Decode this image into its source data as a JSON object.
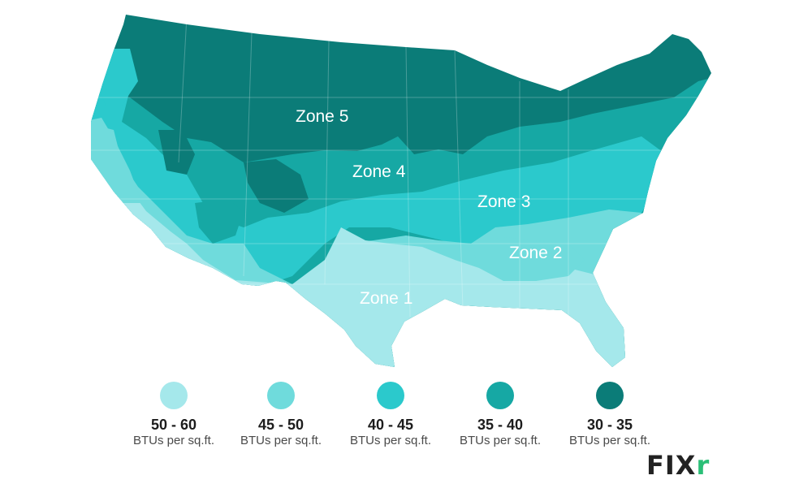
{
  "colors": {
    "zone1": "#a5e8eb",
    "zone2": "#6fdbdc",
    "zone3": "#2bc9cc",
    "zone4": "#16a8a4",
    "zone5": "#0b7c78"
  },
  "zones": {
    "zone5": "Zone 5",
    "zone4": "Zone 4",
    "zone3": "Zone 3",
    "zone2": "Zone 2",
    "zone1": "Zone 1"
  },
  "legend": [
    {
      "range": "50 - 60",
      "unit": "BTUs per sq.ft.",
      "color": "#a5e8eb"
    },
    {
      "range": "45 - 50",
      "unit": "BTUs per sq.ft.",
      "color": "#6fdbdc"
    },
    {
      "range": "40 - 45",
      "unit": "BTUs per sq.ft.",
      "color": "#2bc9cc"
    },
    {
      "range": "35 - 40",
      "unit": "BTUs per sq.ft.",
      "color": "#16a8a4"
    },
    {
      "range": "30 - 35",
      "unit": "BTUs per sq.ft.",
      "color": "#0b7c78"
    }
  ],
  "logo": {
    "main": "FIX",
    "accent": "r"
  }
}
